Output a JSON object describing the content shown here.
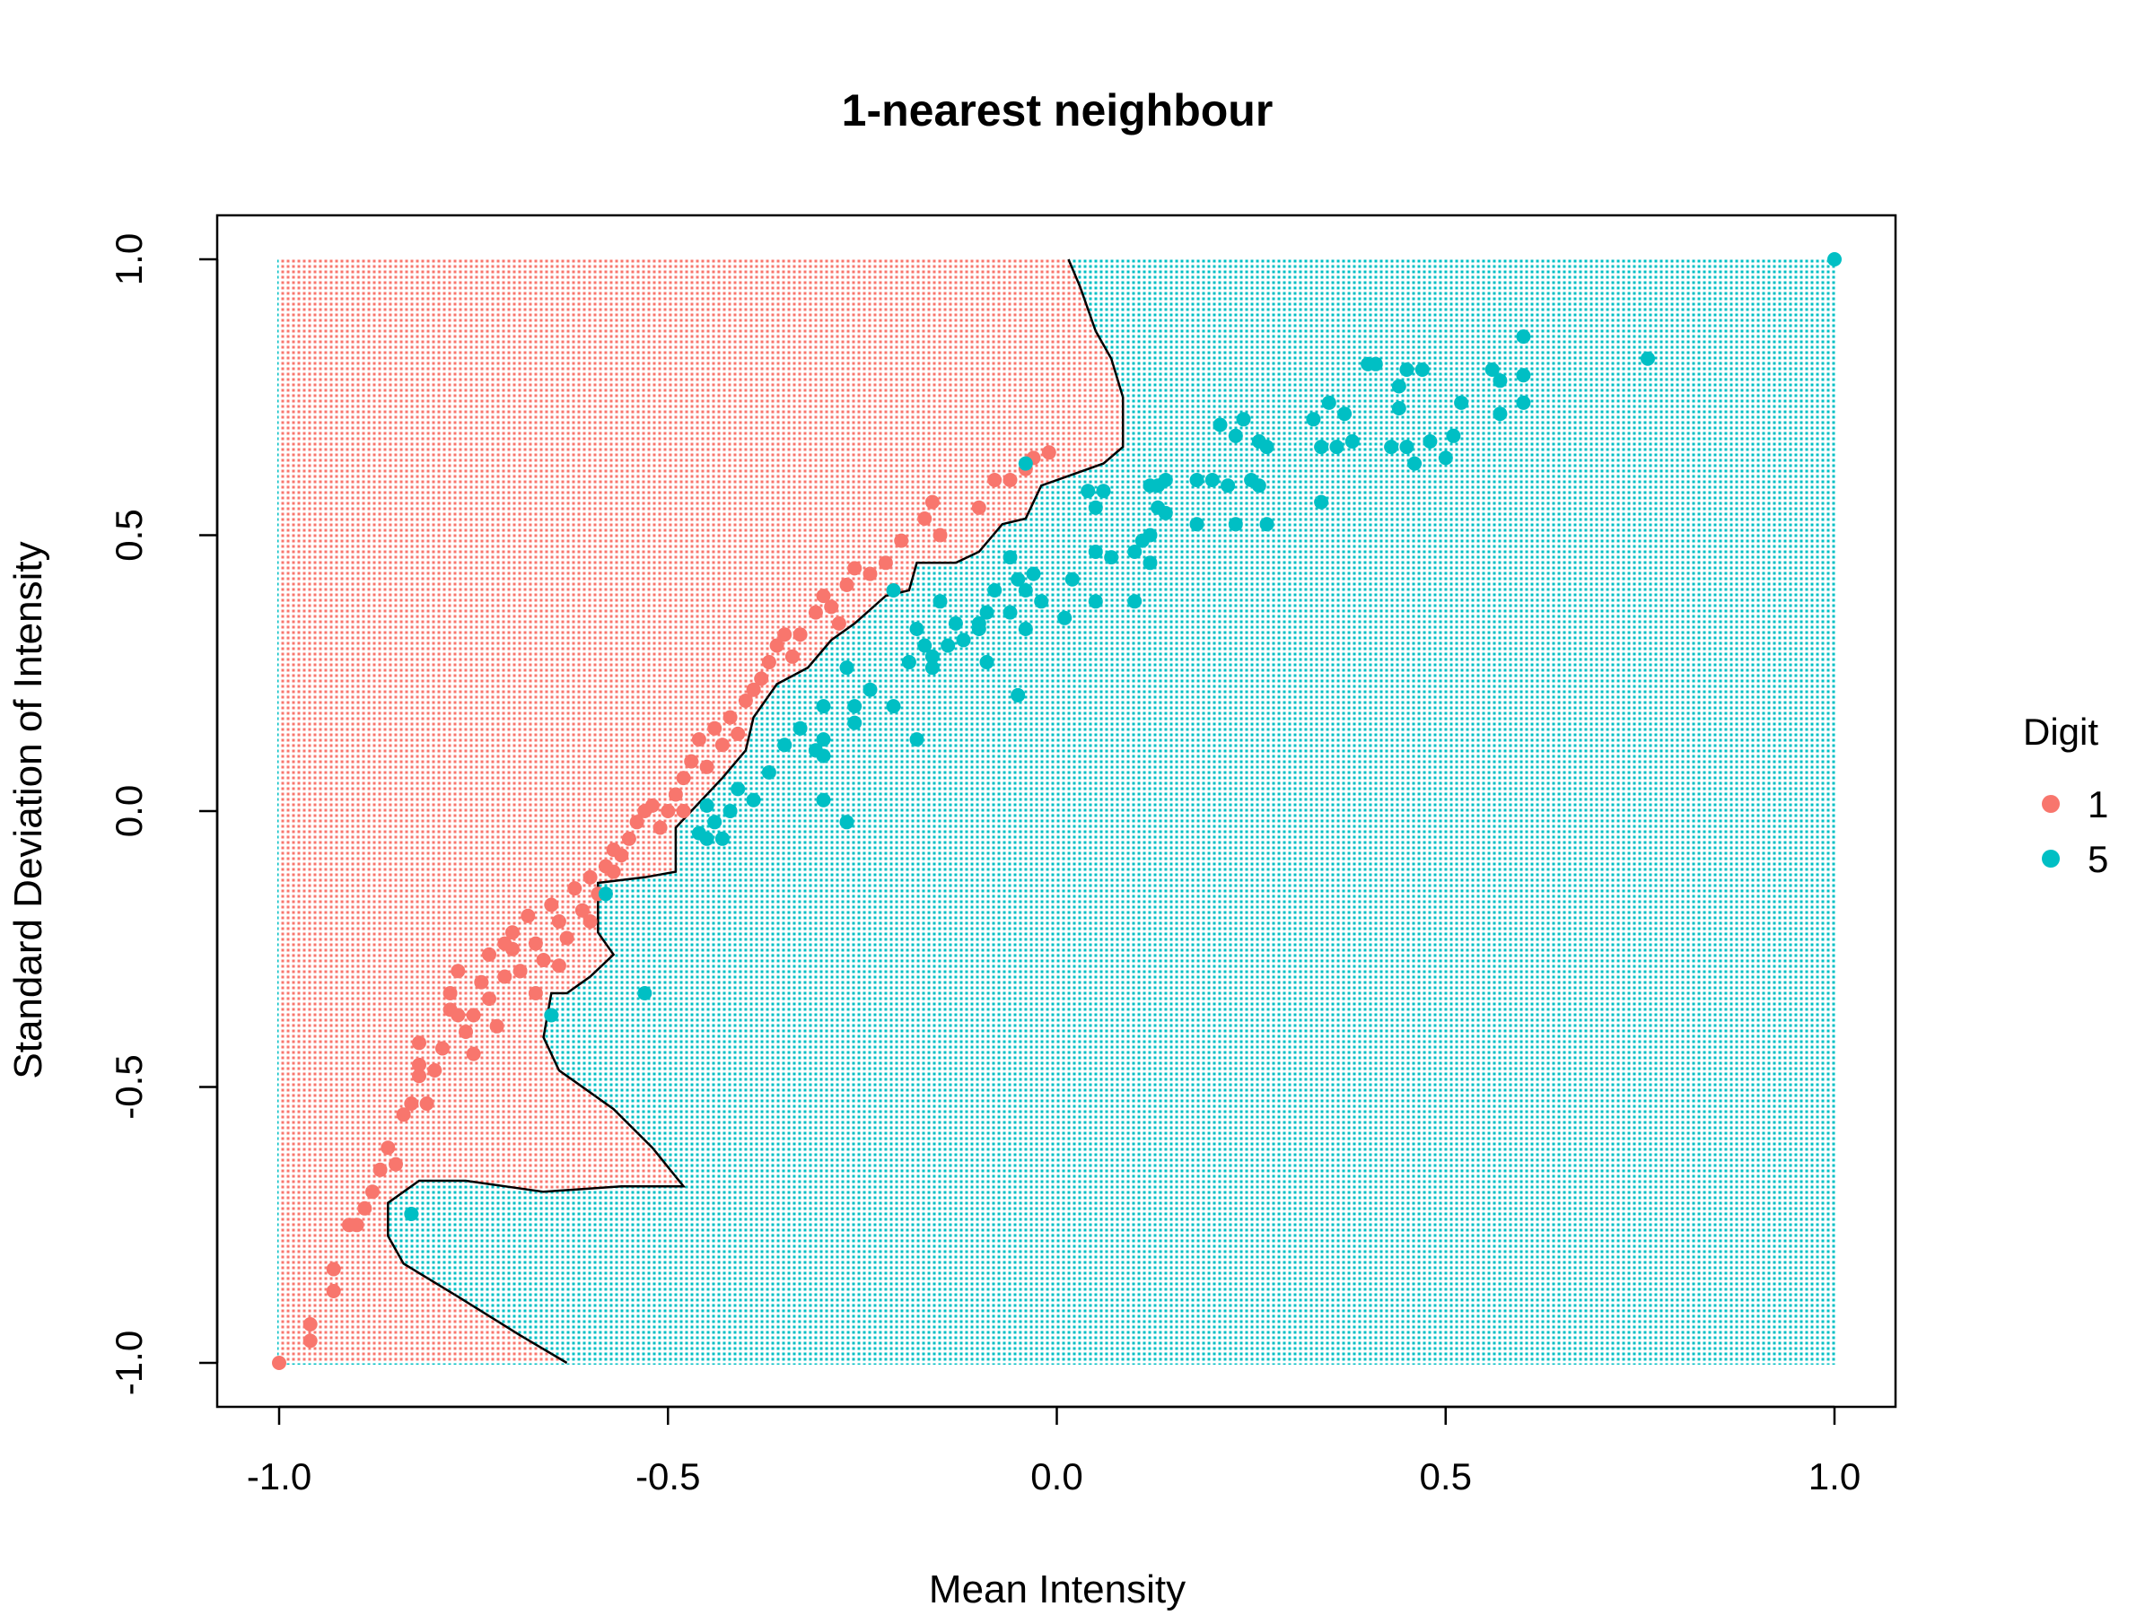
{
  "chart_data": {
    "type": "scatter",
    "title": "1-nearest neighbour",
    "xlabel": "Mean Intensity",
    "ylabel": "Standard Deviation of Intensity",
    "xlim": [
      -1.0,
      1.0
    ],
    "ylim": [
      -1.0,
      1.0
    ],
    "x_ticks": [
      "-1.0",
      "-0.5",
      "0.0",
      "0.5",
      "1.0"
    ],
    "y_ticks": [
      "-1.0",
      "-0.5",
      "0.0",
      "0.5",
      "1.0"
    ],
    "grid": false,
    "background": "decision-region grid of small dots, coloured by predicted class, separated by a black boundary line",
    "legend": {
      "title": "Digit",
      "position": "right",
      "entries": [
        {
          "label": "1",
          "color": "#F8766D"
        },
        {
          "label": "5",
          "color": "#00BFC4"
        }
      ]
    },
    "decision_boundary": [
      [
        0.015,
        1.0
      ],
      [
        0.03,
        0.95
      ],
      [
        0.05,
        0.87
      ],
      [
        0.07,
        0.82
      ],
      [
        0.085,
        0.75
      ],
      [
        0.085,
        0.66
      ],
      [
        0.06,
        0.63
      ],
      [
        0.02,
        0.61
      ],
      [
        -0.02,
        0.59
      ],
      [
        -0.04,
        0.53
      ],
      [
        -0.07,
        0.52
      ],
      [
        -0.1,
        0.47
      ],
      [
        -0.13,
        0.45
      ],
      [
        -0.18,
        0.45
      ],
      [
        -0.19,
        0.4
      ],
      [
        -0.22,
        0.39
      ],
      [
        -0.26,
        0.34
      ],
      [
        -0.29,
        0.31
      ],
      [
        -0.32,
        0.26
      ],
      [
        -0.36,
        0.23
      ],
      [
        -0.39,
        0.17
      ],
      [
        -0.4,
        0.11
      ],
      [
        -0.43,
        0.06
      ],
      [
        -0.45,
        0.03
      ],
      [
        -0.47,
        0.0
      ],
      [
        -0.49,
        -0.03
      ],
      [
        -0.49,
        -0.11
      ],
      [
        -0.53,
        -0.12
      ],
      [
        -0.59,
        -0.13
      ],
      [
        -0.59,
        -0.22
      ],
      [
        -0.57,
        -0.26
      ],
      [
        -0.6,
        -0.3
      ],
      [
        -0.63,
        -0.33
      ],
      [
        -0.65,
        -0.33
      ],
      [
        -0.66,
        -0.41
      ],
      [
        -0.64,
        -0.47
      ],
      [
        -0.57,
        -0.54
      ],
      [
        -0.52,
        -0.61
      ],
      [
        -0.48,
        -0.68
      ],
      [
        -0.56,
        -0.68
      ],
      [
        -0.66,
        -0.69
      ],
      [
        -0.76,
        -0.67
      ],
      [
        -0.82,
        -0.67
      ],
      [
        -0.86,
        -0.71
      ],
      [
        -0.86,
        -0.77
      ],
      [
        -0.84,
        -0.82
      ],
      [
        -0.77,
        -0.88
      ],
      [
        -0.69,
        -0.95
      ],
      [
        -0.63,
        -1.0
      ]
    ],
    "series": [
      {
        "name": "1",
        "color": "#F8766D",
        "points": [
          [
            -1.0,
            -1.0
          ],
          [
            -0.96,
            -0.96
          ],
          [
            -0.96,
            -0.93
          ],
          [
            -0.93,
            -0.87
          ],
          [
            -0.93,
            -0.83
          ],
          [
            -0.91,
            -0.75
          ],
          [
            -0.9,
            -0.75
          ],
          [
            -0.89,
            -0.72
          ],
          [
            -0.88,
            -0.69
          ],
          [
            -0.87,
            -0.65
          ],
          [
            -0.86,
            -0.61
          ],
          [
            -0.85,
            -0.64
          ],
          [
            -0.84,
            -0.55
          ],
          [
            -0.83,
            -0.53
          ],
          [
            -0.82,
            -0.48
          ],
          [
            -0.82,
            -0.46
          ],
          [
            -0.81,
            -0.53
          ],
          [
            -0.8,
            -0.47
          ],
          [
            -0.79,
            -0.43
          ],
          [
            -0.78,
            -0.36
          ],
          [
            -0.78,
            -0.33
          ],
          [
            -0.77,
            -0.37
          ],
          [
            -0.76,
            -0.4
          ],
          [
            -0.75,
            -0.37
          ],
          [
            -0.75,
            -0.44
          ],
          [
            -0.74,
            -0.31
          ],
          [
            -0.73,
            -0.26
          ],
          [
            -0.73,
            -0.34
          ],
          [
            -0.72,
            -0.39
          ],
          [
            -0.71,
            -0.3
          ],
          [
            -0.7,
            -0.22
          ],
          [
            -0.7,
            -0.25
          ],
          [
            -0.69,
            -0.29
          ],
          [
            -0.68,
            -0.19
          ],
          [
            -0.67,
            -0.24
          ],
          [
            -0.66,
            -0.27
          ],
          [
            -0.65,
            -0.17
          ],
          [
            -0.64,
            -0.2
          ],
          [
            -0.63,
            -0.23
          ],
          [
            -0.62,
            -0.14
          ],
          [
            -0.61,
            -0.18
          ],
          [
            -0.6,
            -0.12
          ],
          [
            -0.59,
            -0.15
          ],
          [
            -0.58,
            -0.1
          ],
          [
            -0.57,
            -0.07
          ],
          [
            -0.56,
            -0.08
          ],
          [
            -0.55,
            -0.05
          ],
          [
            -0.54,
            -0.02
          ],
          [
            -0.53,
            0.0
          ],
          [
            -0.52,
            0.01
          ],
          [
            -0.5,
            0.0
          ],
          [
            -0.49,
            0.03
          ],
          [
            -0.48,
            0.06
          ],
          [
            -0.47,
            0.09
          ],
          [
            -0.46,
            0.13
          ],
          [
            -0.44,
            0.15
          ],
          [
            -0.43,
            0.12
          ],
          [
            -0.42,
            0.17
          ],
          [
            -0.4,
            0.2
          ],
          [
            -0.39,
            0.22
          ],
          [
            -0.38,
            0.24
          ],
          [
            -0.37,
            0.27
          ],
          [
            -0.36,
            0.3
          ],
          [
            -0.35,
            0.32
          ],
          [
            -0.33,
            0.32
          ],
          [
            -0.31,
            0.36
          ],
          [
            -0.3,
            0.39
          ],
          [
            -0.29,
            0.37
          ],
          [
            -0.27,
            0.41
          ],
          [
            -0.26,
            0.44
          ],
          [
            -0.24,
            0.43
          ],
          [
            -0.22,
            0.45
          ],
          [
            -0.2,
            0.49
          ],
          [
            -0.17,
            0.53
          ],
          [
            -0.16,
            0.56
          ],
          [
            -0.15,
            0.5
          ],
          [
            -0.1,
            0.55
          ],
          [
            -0.08,
            0.6
          ],
          [
            -0.06,
            0.6
          ],
          [
            -0.04,
            0.62
          ],
          [
            -0.03,
            0.64
          ],
          [
            -0.01,
            0.65
          ],
          [
            -0.82,
            -0.42
          ],
          [
            -0.77,
            -0.29
          ],
          [
            -0.71,
            -0.24
          ],
          [
            -0.67,
            -0.33
          ],
          [
            -0.64,
            -0.28
          ],
          [
            -0.6,
            -0.2
          ],
          [
            -0.57,
            -0.11
          ],
          [
            -0.51,
            -0.03
          ],
          [
            -0.48,
            0.0
          ],
          [
            -0.45,
            0.08
          ],
          [
            -0.41,
            0.14
          ],
          [
            -0.34,
            0.28
          ],
          [
            -0.28,
            0.34
          ]
        ]
      },
      {
        "name": "5",
        "color": "#00BFC4",
        "points": [
          [
            1.0,
            1.0
          ],
          [
            0.76,
            0.82
          ],
          [
            0.6,
            0.86
          ],
          [
            0.6,
            0.79
          ],
          [
            0.6,
            0.74
          ],
          [
            0.56,
            0.8
          ],
          [
            0.57,
            0.78
          ],
          [
            0.57,
            0.72
          ],
          [
            0.52,
            0.74
          ],
          [
            0.51,
            0.68
          ],
          [
            0.5,
            0.64
          ],
          [
            0.48,
            0.67
          ],
          [
            0.47,
            0.8
          ],
          [
            0.45,
            0.8
          ],
          [
            0.44,
            0.77
          ],
          [
            0.44,
            0.73
          ],
          [
            0.45,
            0.66
          ],
          [
            0.46,
            0.63
          ],
          [
            0.43,
            0.66
          ],
          [
            0.41,
            0.81
          ],
          [
            0.4,
            0.81
          ],
          [
            0.38,
            0.67
          ],
          [
            0.37,
            0.72
          ],
          [
            0.35,
            0.74
          ],
          [
            0.33,
            0.71
          ],
          [
            0.34,
            0.66
          ],
          [
            0.36,
            0.66
          ],
          [
            0.34,
            0.56
          ],
          [
            0.26,
            0.67
          ],
          [
            0.25,
            0.6
          ],
          [
            0.24,
            0.71
          ],
          [
            0.23,
            0.68
          ],
          [
            0.21,
            0.7
          ],
          [
            0.22,
            0.59
          ],
          [
            0.2,
            0.6
          ],
          [
            0.18,
            0.6
          ],
          [
            0.18,
            0.52
          ],
          [
            0.23,
            0.52
          ],
          [
            0.26,
            0.59
          ],
          [
            0.27,
            0.52
          ],
          [
            0.14,
            0.6
          ],
          [
            0.13,
            0.59
          ],
          [
            0.12,
            0.59
          ],
          [
            0.14,
            0.54
          ],
          [
            0.13,
            0.55
          ],
          [
            0.12,
            0.5
          ],
          [
            0.11,
            0.49
          ],
          [
            0.1,
            0.47
          ],
          [
            0.12,
            0.45
          ],
          [
            0.07,
            0.46
          ],
          [
            0.06,
            0.58
          ],
          [
            0.05,
            0.55
          ],
          [
            0.04,
            0.58
          ],
          [
            0.05,
            0.47
          ],
          [
            0.02,
            0.42
          ],
          [
            0.05,
            0.38
          ],
          [
            0.1,
            0.38
          ],
          [
            0.01,
            0.35
          ],
          [
            -0.02,
            0.38
          ],
          [
            -0.03,
            0.43
          ],
          [
            -0.04,
            0.4
          ],
          [
            -0.05,
            0.42
          ],
          [
            -0.06,
            0.36
          ],
          [
            -0.04,
            0.33
          ],
          [
            -0.08,
            0.4
          ],
          [
            -0.09,
            0.36
          ],
          [
            -0.1,
            0.34
          ],
          [
            -0.09,
            0.27
          ],
          [
            -0.1,
            0.33
          ],
          [
            -0.12,
            0.31
          ],
          [
            -0.13,
            0.34
          ],
          [
            -0.14,
            0.3
          ],
          [
            -0.15,
            0.38
          ],
          [
            -0.16,
            0.28
          ],
          [
            -0.16,
            0.26
          ],
          [
            -0.17,
            0.3
          ],
          [
            -0.18,
            0.33
          ],
          [
            -0.19,
            0.27
          ],
          [
            -0.21,
            0.19
          ],
          [
            -0.24,
            0.22
          ],
          [
            -0.26,
            0.19
          ],
          [
            -0.26,
            0.16
          ],
          [
            -0.27,
            0.26
          ],
          [
            -0.3,
            0.19
          ],
          [
            -0.3,
            0.13
          ],
          [
            -0.3,
            0.1
          ],
          [
            -0.31,
            0.11
          ],
          [
            -0.33,
            0.15
          ],
          [
            -0.35,
            0.12
          ],
          [
            -0.37,
            0.07
          ],
          [
            -0.39,
            0.02
          ],
          [
            -0.41,
            0.04
          ],
          [
            -0.42,
            0.0
          ],
          [
            -0.44,
            -0.02
          ],
          [
            -0.45,
            0.01
          ],
          [
            -0.46,
            -0.04
          ],
          [
            -0.45,
            -0.05
          ],
          [
            -0.43,
            -0.05
          ],
          [
            -0.3,
            0.02
          ],
          [
            -0.27,
            -0.02
          ],
          [
            -0.05,
            0.21
          ],
          [
            -0.06,
            0.46
          ],
          [
            -0.18,
            0.13
          ],
          [
            -0.21,
            0.4
          ],
          [
            -0.58,
            -0.15
          ],
          [
            -0.53,
            -0.33
          ],
          [
            -0.65,
            -0.37
          ],
          [
            -0.83,
            -0.73
          ],
          [
            -0.04,
            0.63
          ],
          [
            0.27,
            0.66
          ]
        ]
      }
    ]
  }
}
